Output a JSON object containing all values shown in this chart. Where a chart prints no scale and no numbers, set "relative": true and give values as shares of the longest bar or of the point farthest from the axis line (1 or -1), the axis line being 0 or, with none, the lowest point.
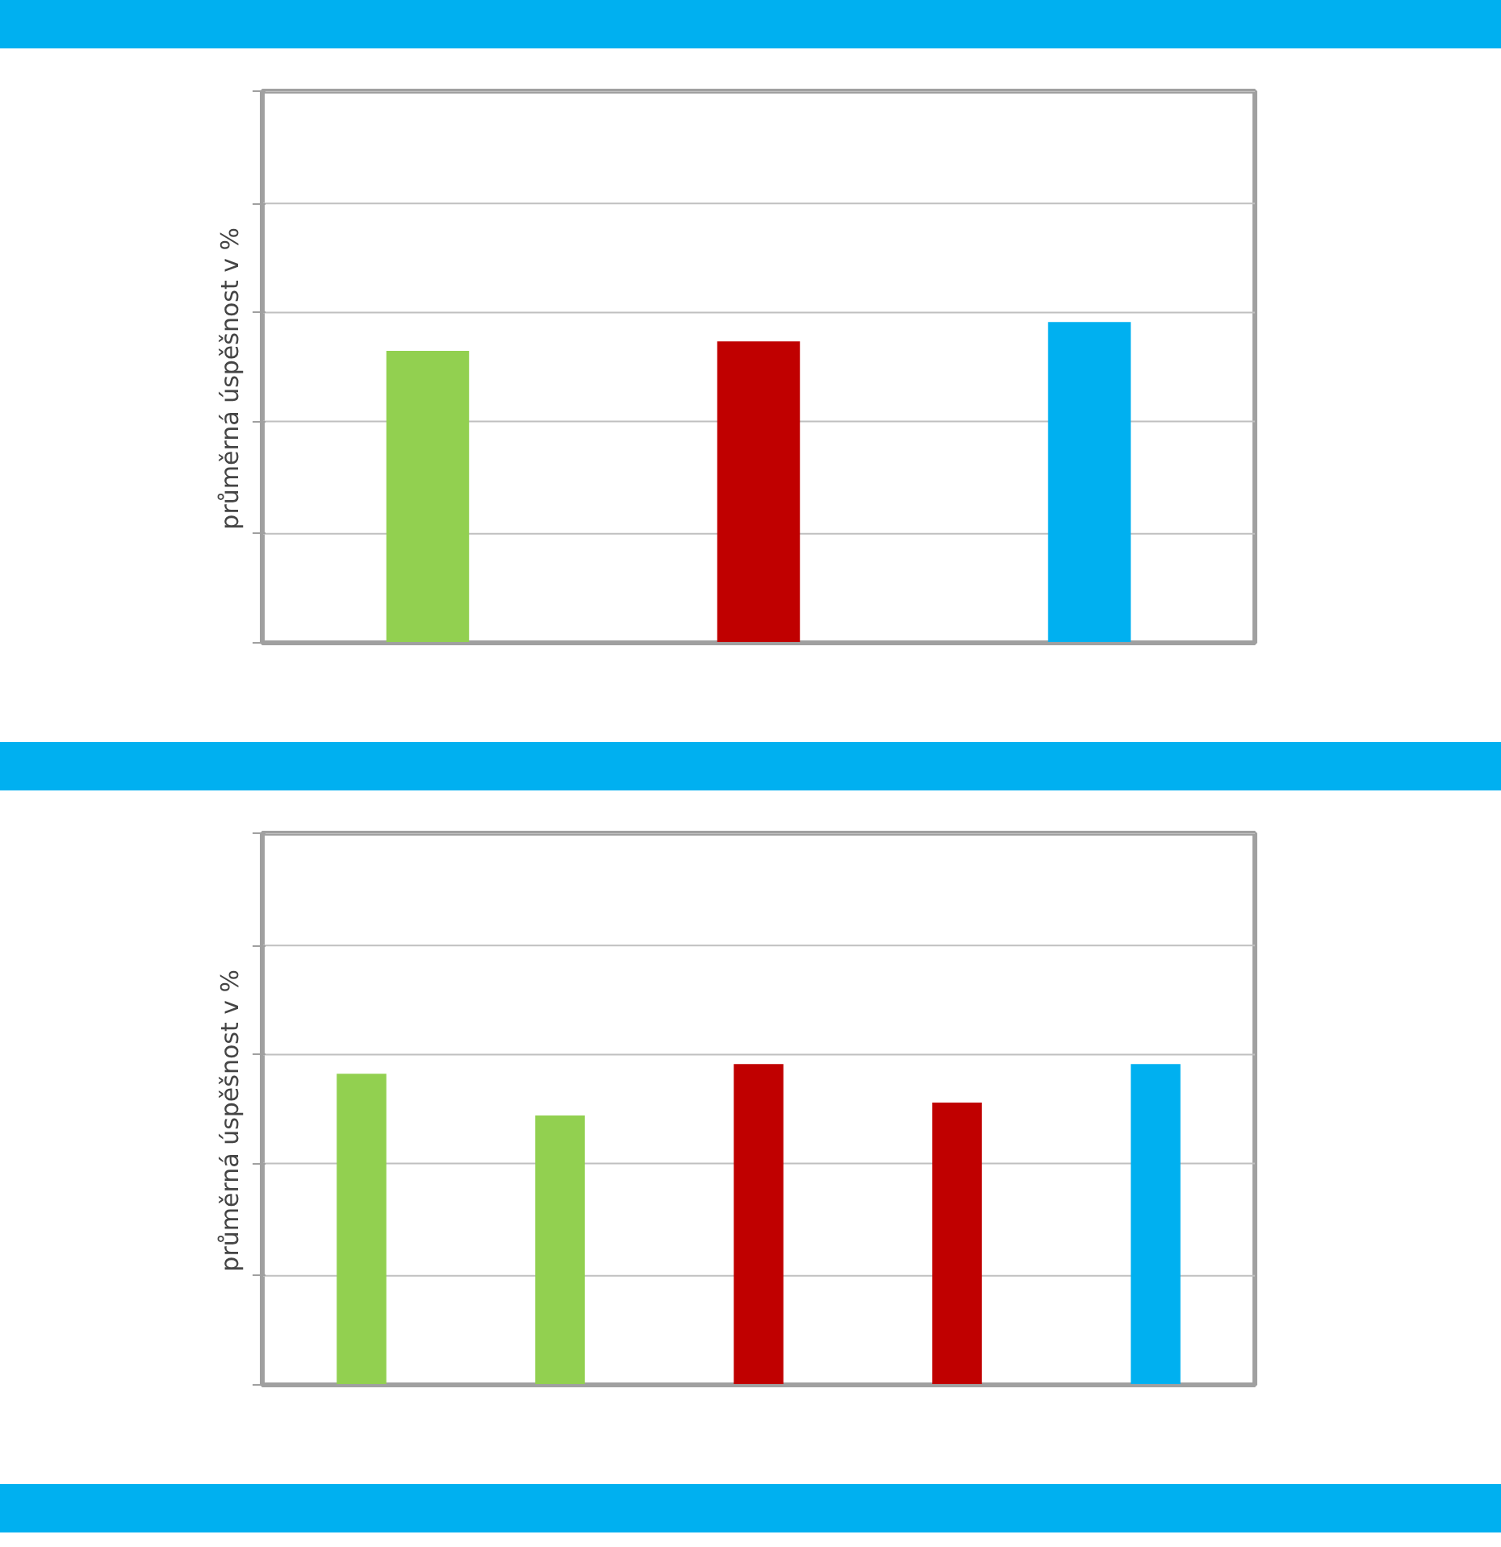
{
  "chart_data": [
    {
      "type": "bar",
      "ylabel": "průměrná úspěšnost  v   %",
      "relative": true,
      "categories": [
        null,
        null,
        null
      ],
      "ref_lines": [
        {
          "axis": "y",
          "value": 0.34,
          "color": "#c0c0c0"
        },
        {
          "axis": "y",
          "value": 0.69,
          "color": "#c0c0c0"
        },
        {
          "axis": "y",
          "value": 1.03,
          "color": "#c0c0c0"
        },
        {
          "axis": "y",
          "value": 1.37,
          "color": "#c0c0c0"
        },
        {
          "axis": "y",
          "value": 1.72,
          "color": "#c0c0c0"
        }
      ],
      "values": [
        0.91,
        0.94,
        1
      ],
      "colors": [
        "#92d050",
        "#c00000",
        "#00b0f0"
      ]
    },
    {
      "type": "bar",
      "ylabel": "průměrná úspěšnost  v   %",
      "relative": true,
      "categories": [
        null,
        null,
        null,
        null,
        null
      ],
      "ref_lines": [
        {
          "axis": "y",
          "value": 0.34,
          "color": "#c0c0c0"
        },
        {
          "axis": "y",
          "value": 0.69,
          "color": "#c0c0c0"
        },
        {
          "axis": "y",
          "value": 1.03,
          "color": "#c0c0c0"
        },
        {
          "axis": "y",
          "value": 1.37,
          "color": "#c0c0c0"
        },
        {
          "axis": "y",
          "value": 1.72,
          "color": "#c0c0c0"
        }
      ],
      "values": [
        0.97,
        0.84,
        1,
        0.88,
        1
      ],
      "colors": [
        "#92d050",
        "#92d050",
        "#c00000",
        "#c00000",
        "#00b0f0"
      ]
    }
  ]
}
